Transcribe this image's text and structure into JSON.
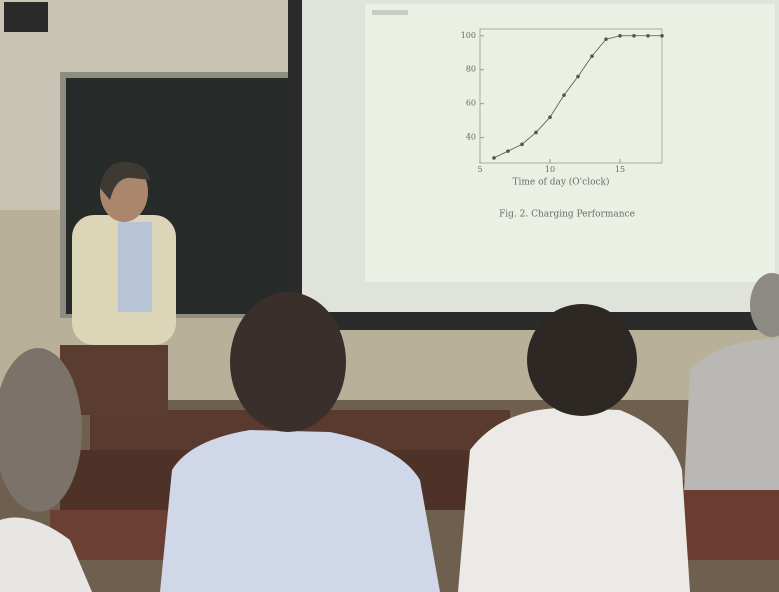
{
  "slide": {
    "caption": "Fig. 2. Charging Performance",
    "chart": {
      "type": "line",
      "x_label": "Time of day (O'clock)",
      "x": [
        6,
        7,
        8,
        9,
        10,
        11,
        12,
        13,
        14,
        15,
        16,
        17,
        18
      ],
      "values": [
        28,
        32,
        36,
        43,
        52,
        65,
        76,
        88,
        98,
        100,
        100,
        100,
        100
      ],
      "xlim": [
        5,
        18
      ],
      "ylim": [
        25,
        104
      ],
      "xticks": [
        5,
        10,
        15
      ],
      "yticks": [
        40,
        60,
        80,
        100
      ],
      "color": "#55554f"
    }
  }
}
